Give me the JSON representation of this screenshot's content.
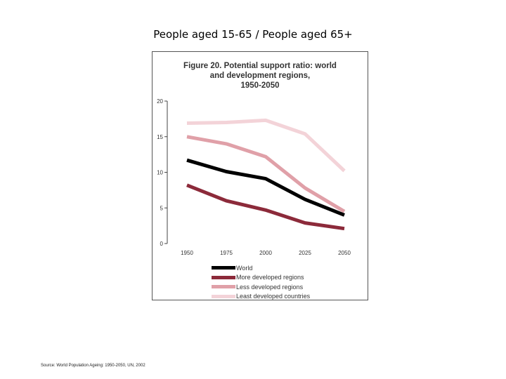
{
  "slide": {
    "title": "People aged 15-65 / People aged 65+",
    "source": "Source: World Population Ageing: 1950-2050, UN, 2002"
  },
  "chart_data": {
    "type": "line",
    "title_lines": [
      "Figure 20.  Potential support ratio: world",
      "and development regions,",
      "1950-2050"
    ],
    "categories": [
      "1950",
      "1975",
      "2000",
      "2025",
      "2050"
    ],
    "ylim": [
      0,
      20
    ],
    "yticks": [
      "0",
      "5",
      "10",
      "15",
      "20"
    ],
    "series": [
      {
        "name": "World",
        "color": "#000000",
        "values": [
          11.7,
          10.1,
          9.1,
          6.2,
          4.0
        ]
      },
      {
        "name": "More developed regions",
        "color": "#8c2a3a",
        "values": [
          8.2,
          6.0,
          4.7,
          2.9,
          2.1
        ]
      },
      {
        "name": "Less developed regions",
        "color": "#e0a0a8",
        "values": [
          15.0,
          14.0,
          12.2,
          7.8,
          4.5
        ]
      },
      {
        "name": "Least developed countries",
        "color": "#f3d3d8",
        "values": [
          16.9,
          17.0,
          17.3,
          15.4,
          10.2
        ]
      }
    ]
  }
}
